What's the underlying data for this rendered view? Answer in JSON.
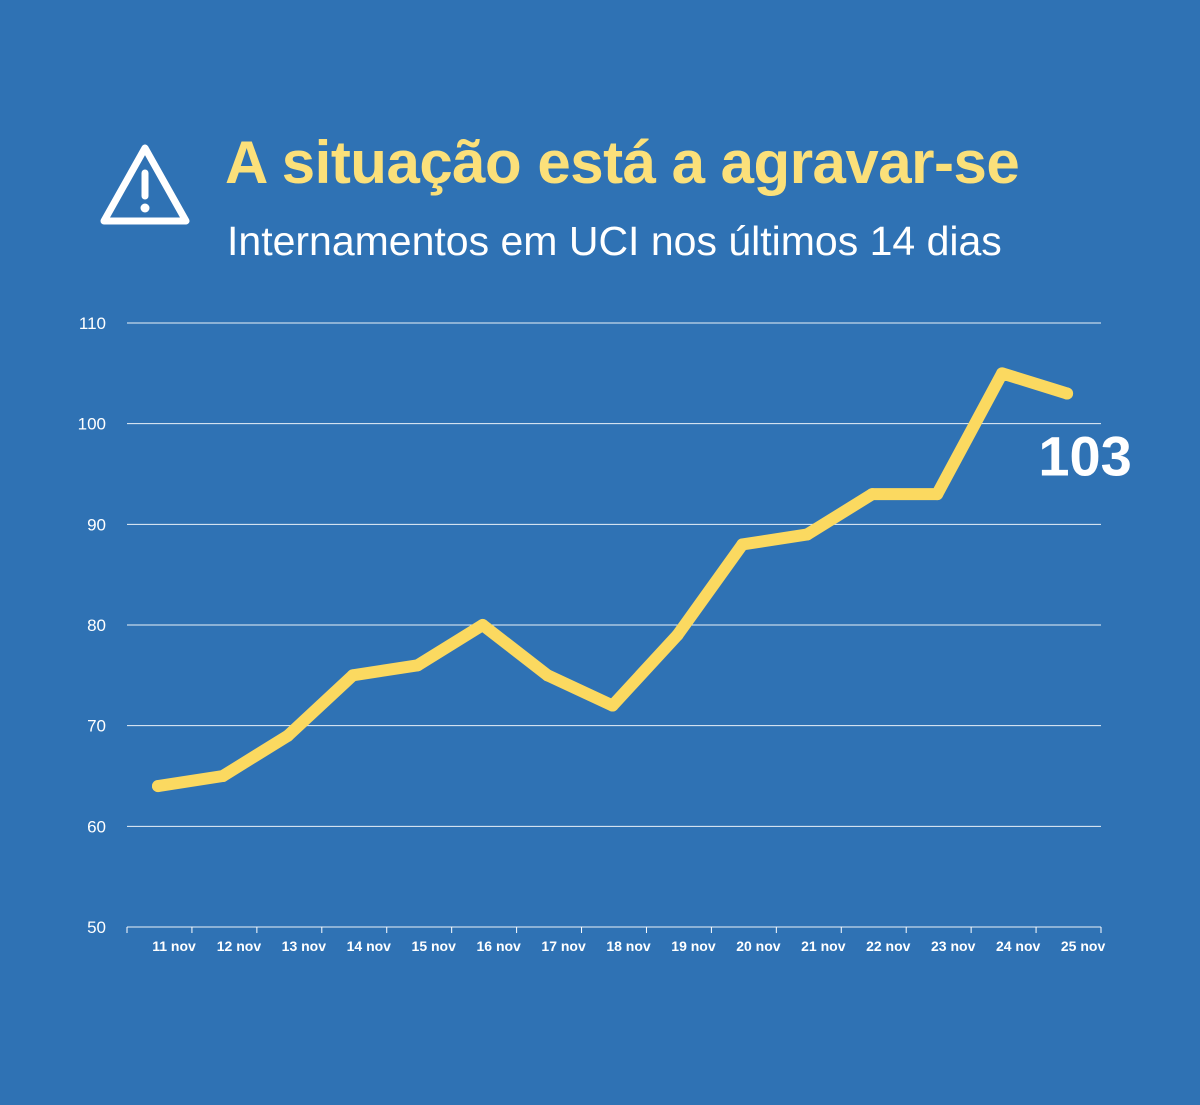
{
  "header": {
    "icon": "warning-triangle-icon",
    "title": "A situação está a agravar-se",
    "subtitle": "Internamentos em UCI nos últimos 14 dias"
  },
  "colors": {
    "background": "#2f72b4",
    "title": "#fbe07a",
    "line": "#fbd960",
    "grid": "#ffffff",
    "text": "#ffffff"
  },
  "chart_data": {
    "type": "line",
    "title": "A situação está a agravar-se",
    "subtitle": "Internamentos em UCI nos últimos 14 dias",
    "xlabel": "",
    "ylabel": "",
    "categories": [
      "11 nov",
      "12 nov",
      "13 nov",
      "14 nov",
      "15 nov",
      "16 nov",
      "17 nov",
      "18 nov",
      "19 nov",
      "20 nov",
      "21 nov",
      "22 nov",
      "23 nov",
      "24 nov",
      "25 nov"
    ],
    "series": [
      {
        "values": [
          64,
          65,
          69,
          75,
          76,
          80,
          75,
          72,
          79,
          88,
          89,
          93,
          93,
          105,
          103
        ]
      }
    ],
    "ylim": [
      50,
      110
    ],
    "yticks": [
      50,
      60,
      70,
      80,
      90,
      100,
      110
    ],
    "grid": true,
    "legend": "none",
    "end_label": "103"
  }
}
